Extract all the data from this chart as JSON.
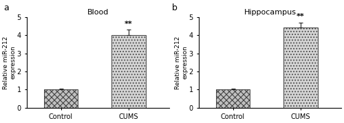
{
  "panels": [
    {
      "label": "a",
      "title": "Blood",
      "categories": [
        "Control",
        "CUMS"
      ],
      "values": [
        1.0,
        4.0
      ],
      "errors": [
        0.05,
        0.3
      ],
      "ylabel": "Relative miR-212\nexpression",
      "ylim": [
        0,
        5
      ],
      "yticks": [
        0,
        1,
        2,
        3,
        4,
        5
      ],
      "significance": "**",
      "cums_bar_value": 4.0,
      "cums_error": 0.3
    },
    {
      "label": "b",
      "title": "Hippocampus",
      "categories": [
        "Control",
        "CUMS"
      ],
      "values": [
        1.0,
        4.45
      ],
      "errors": [
        0.05,
        0.25
      ],
      "ylabel": "Relative miR-212\nexpression",
      "ylim": [
        0,
        5
      ],
      "yticks": [
        0,
        1,
        2,
        3,
        4,
        5
      ],
      "significance": "**",
      "cums_bar_value": 4.45,
      "cums_error": 0.25
    }
  ],
  "bg_color": "#ffffff",
  "hatch_control": "xxxx",
  "hatch_cums": "....",
  "control_facecolor": "#c0c0c0",
  "cums_facecolor": "#d4d4d4",
  "bar_edge_color": "#444444",
  "error_color": "#222222",
  "fontsize_title": 8,
  "fontsize_ylabel": 6.5,
  "fontsize_tick": 7,
  "fontsize_sig": 8,
  "fontsize_panel_label": 9,
  "bar_width": 0.5
}
